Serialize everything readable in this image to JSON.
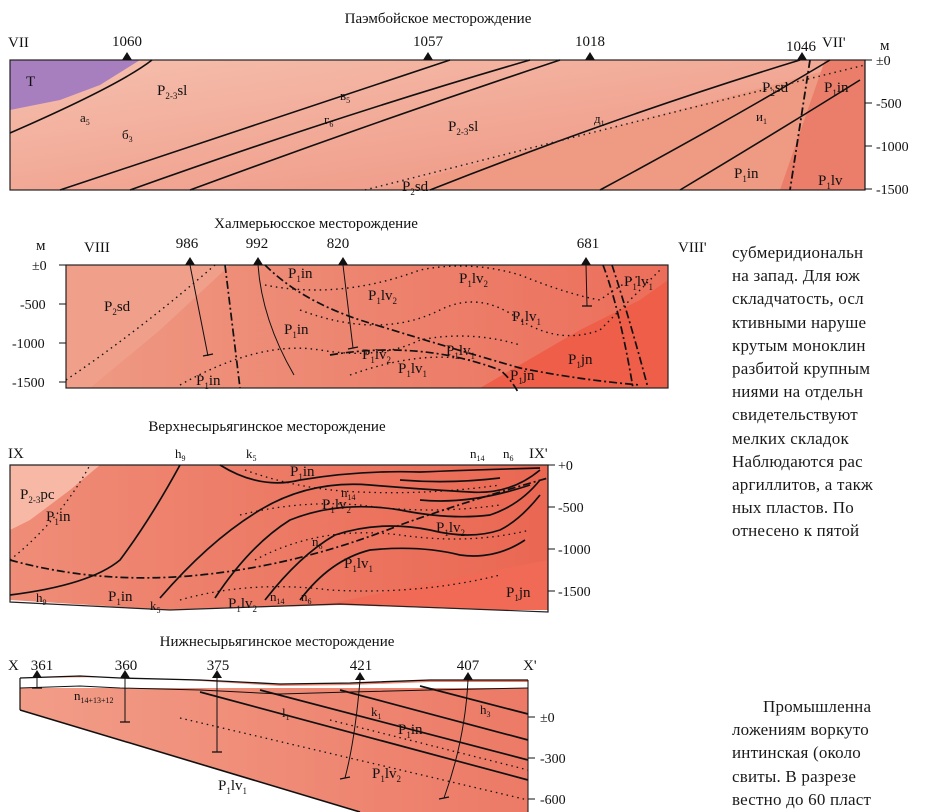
{
  "sections": [
    {
      "title": "Паэмбойское месторождение",
      "left_end": "VII",
      "right_end": "VII'",
      "unit": "м",
      "wells": [
        "1060",
        "1057",
        "1018",
        "1046"
      ],
      "depth_ticks": [
        "±0",
        "-500",
        "-1000",
        "-1500"
      ],
      "formations": [
        {
          "base": "T",
          "sub": ""
        },
        {
          "base": "P",
          "sub": "2-3",
          "suffix": "sl"
        },
        {
          "base": "P",
          "sub": "2-3",
          "suffix": "sl"
        },
        {
          "base": "P",
          "sub": "2",
          "suffix": "sd"
        },
        {
          "base": "P",
          "sub": "2",
          "suffix": "sd"
        },
        {
          "base": "P",
          "sub": "1",
          "suffix": "in"
        },
        {
          "base": "P",
          "sub": "1",
          "suffix": "in"
        },
        {
          "base": "P",
          "sub": "1",
          "suffix": "lv"
        }
      ],
      "seams": [
        {
          "base": "а",
          "sub": "5"
        },
        {
          "base": "б",
          "sub": "3"
        },
        {
          "base": "в",
          "sub": "5"
        },
        {
          "base": "г",
          "sub": "6"
        },
        {
          "base": "д",
          "sub": "1"
        },
        {
          "base": "и",
          "sub": "1"
        }
      ]
    },
    {
      "title": "Халмерьюсское месторождение",
      "left_end": "VIII",
      "right_end": "VIII'",
      "unit": "м",
      "wells": [
        "986",
        "992",
        "820",
        "681"
      ],
      "depth_ticks": [
        "±0",
        "-500",
        "-1000",
        "-1500"
      ],
      "formations": [
        {
          "base": "P",
          "sub": "2",
          "suffix": "sd"
        },
        {
          "base": "P",
          "sub": "1",
          "suffix": "in"
        },
        {
          "base": "P",
          "sub": "1",
          "suffix": "in"
        },
        {
          "base": "P",
          "sub": "1",
          "suffix": "in"
        },
        {
          "base": "P",
          "sub": "1",
          "suffix": "lv",
          "sub2": "2"
        },
        {
          "base": "P",
          "sub": "1",
          "suffix": "lv",
          "sub2": "2"
        },
        {
          "base": "P",
          "sub": "1",
          "suffix": "lv",
          "sub2": "1"
        },
        {
          "base": "P",
          "sub": "1",
          "suffix": "lv",
          "sub2": "1"
        },
        {
          "base": "P",
          "sub": "1",
          "suffix": "lv",
          "sub2": "2"
        },
        {
          "base": "P",
          "sub": "1",
          "suffix": "lv",
          "sub2": "1"
        },
        {
          "base": "P",
          "sub": "1",
          "suffix": "lv",
          "sub2": "1"
        },
        {
          "base": "P",
          "sub": "1",
          "suffix": "jn"
        },
        {
          "base": "P",
          "sub": "1",
          "suffix": "jn"
        }
      ]
    },
    {
      "title": "Верхнесырьягинское месторождение",
      "left_end": "IX",
      "right_end": "IX'",
      "depth_ticks": [
        "+0",
        "-500",
        "-1000",
        "-1500"
      ],
      "formations": [
        {
          "base": "P",
          "sub": "2-3",
          "suffix": "pc"
        },
        {
          "base": "P",
          "sub": "1",
          "suffix": "in"
        },
        {
          "base": "P",
          "sub": "1",
          "suffix": "in"
        },
        {
          "base": "P",
          "sub": "1",
          "suffix": "in"
        },
        {
          "base": "P",
          "sub": "1",
          "suffix": "lv",
          "sub2": "2"
        },
        {
          "base": "P",
          "sub": "1",
          "suffix": "lv",
          "sub2": "2"
        },
        {
          "base": "P",
          "sub": "1",
          "suffix": "lv",
          "sub2": "1"
        },
        {
          "base": "P",
          "sub": "1",
          "suffix": "lv",
          "sub2": "2"
        },
        {
          "base": "P",
          "sub": "1",
          "suffix": "jn"
        }
      ],
      "seams": [
        {
          "base": "h",
          "sub": "9"
        },
        {
          "base": "k",
          "sub": "5"
        },
        {
          "base": "n",
          "sub": "14"
        },
        {
          "base": "n",
          "sub": "6"
        },
        {
          "base": "n",
          "sub": "14"
        },
        {
          "base": "n",
          "sub": "6"
        },
        {
          "base": "h",
          "sub": "9"
        },
        {
          "base": "k",
          "sub": "5"
        },
        {
          "base": "n",
          "sub": "14"
        },
        {
          "base": "n",
          "sub": "6"
        }
      ]
    },
    {
      "title": "Нижнесырьягинское месторождение",
      "left_end": "X",
      "right_end": "X'",
      "wells": [
        "361",
        "360",
        "375",
        "421",
        "407"
      ],
      "depth_ticks": [
        "±0",
        "-300",
        "-600"
      ],
      "formations": [
        {
          "base": "P",
          "sub": "1",
          "suffix": "in"
        },
        {
          "base": "P",
          "sub": "1",
          "suffix": "lv",
          "sub2": "2"
        },
        {
          "base": "P",
          "sub": "1",
          "suffix": "lv",
          "sub2": "1"
        }
      ],
      "seams": [
        {
          "base": "n",
          "sub": "14+13+12"
        },
        {
          "base": "l",
          "sub": "1"
        },
        {
          "base": "k",
          "sub": "1"
        },
        {
          "base": "h",
          "sub": "3"
        }
      ]
    }
  ],
  "text_column": [
    "субмеридиональн",
    "на запад. Для юж",
    "складчатость, осл",
    "ктивными наруше",
    "крутым моноклин",
    "разбитой крупным",
    "ниями на отдельн",
    "свидетельствуют",
    "мелких складок",
    "Наблюдаются рас",
    "аргиллитов, а такж",
    "ных пластов. По",
    "отнесено к пятой"
  ],
  "text_column_2": [
    "Промышленна",
    "ложениям воркуто",
    "интинская (около",
    "свиты. В разрезе",
    "вестно до 60 пласт"
  ],
  "colors": {
    "permian_light": "#f7c6b3",
    "permian_mid": "#f0a48d",
    "permian_dark": "#e8806c",
    "permian_deep": "#ee6352",
    "triassic": "#a77fbf"
  }
}
